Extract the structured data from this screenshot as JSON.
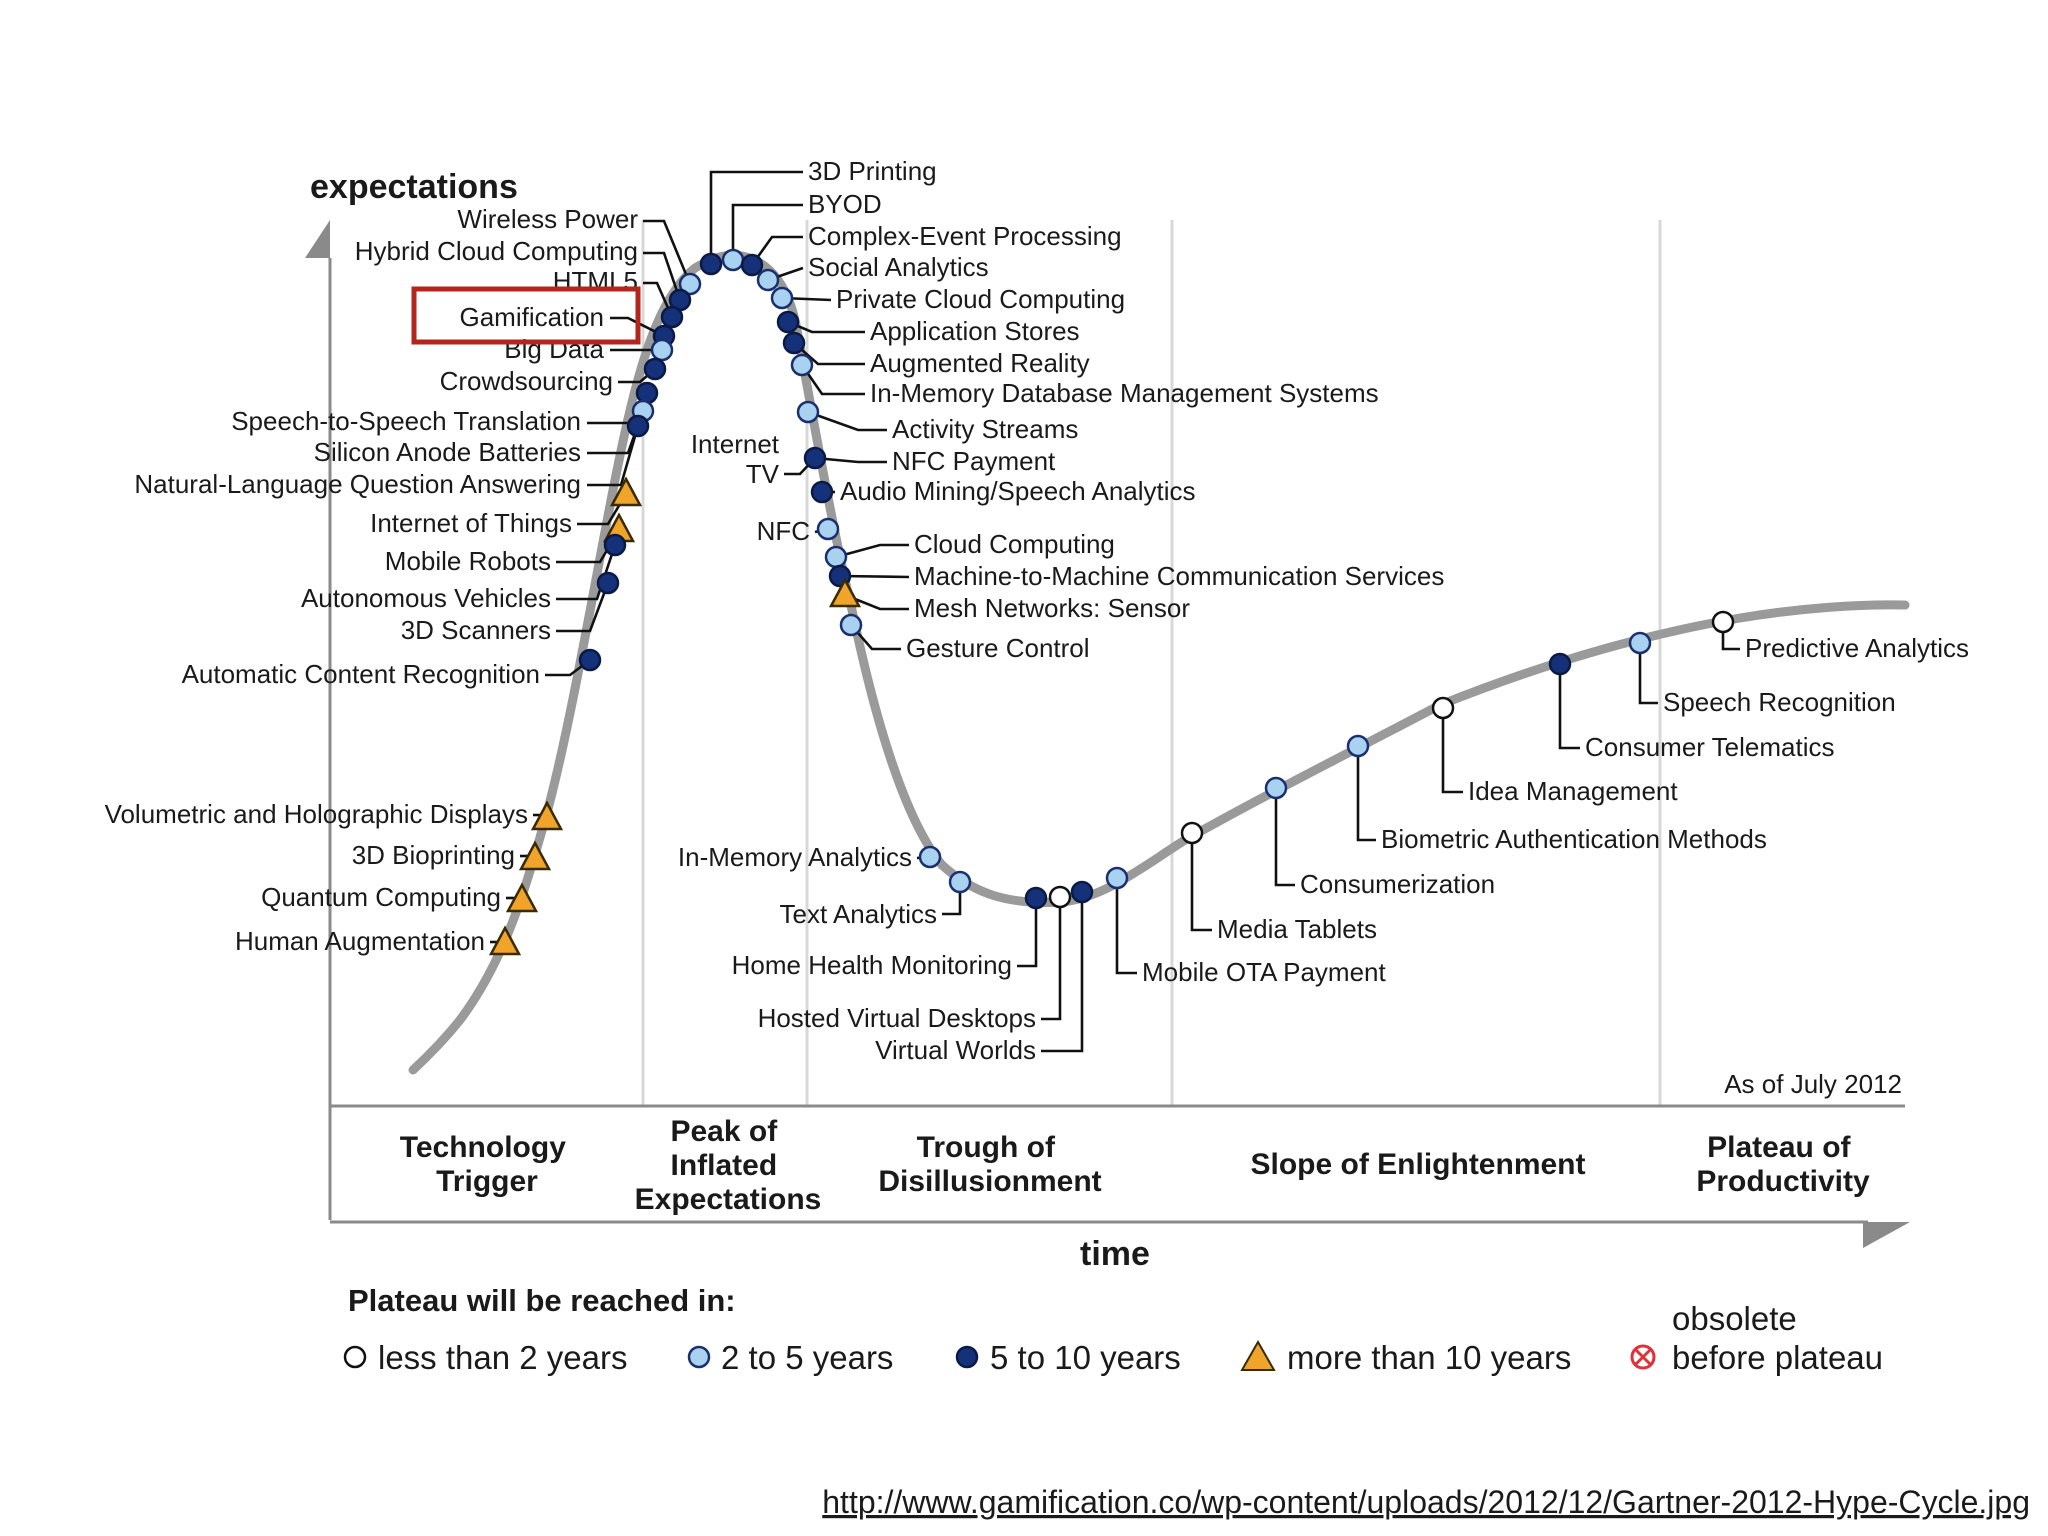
{
  "diagram": {
    "y_axis_label": "expectations",
    "x_axis_label": "time",
    "as_of": "As of July 2012",
    "phases": [
      {
        "id": "trigger",
        "lines": [
          "Technology",
          "Trigger"
        ]
      },
      {
        "id": "peak",
        "lines": [
          "Peak of",
          "Inflated",
          "Expectations"
        ]
      },
      {
        "id": "trough",
        "lines": [
          "Trough of",
          "Disillusionment"
        ]
      },
      {
        "id": "slope",
        "lines": [
          "Slope of Enlightenment"
        ]
      },
      {
        "id": "plateau",
        "lines": [
          "Plateau of",
          "Productivity"
        ]
      }
    ],
    "highlighted": "Gamification",
    "highlight_color": "#b3261e",
    "colors": {
      "curve": "#9a9a9a",
      "less_than_2": "#ffffff",
      "two_to_five": "#a8d2f0",
      "five_to_ten": "#14317a",
      "more_than_10": "#f0a52a",
      "obsolete": "#e0303a"
    },
    "technologies": [
      {
        "name": "Wireless Power",
        "category": "2to5"
      },
      {
        "name": "Hybrid Cloud Computing",
        "category": "5to10"
      },
      {
        "name": "HTML5",
        "category": "5to10"
      },
      {
        "name": "Gamification",
        "category": "5to10"
      },
      {
        "name": "Big Data",
        "category": "2to5"
      },
      {
        "name": "Crowdsourcing",
        "category": "5to10"
      },
      {
        "name": "Speech-to-Speech Translation",
        "category": "5to10"
      },
      {
        "name": "Silicon Anode Batteries",
        "category": "2to5"
      },
      {
        "name": "Natural-Language Question Answering",
        "category": "5to10"
      },
      {
        "name": "Internet of Things",
        "category": "gt10"
      },
      {
        "name": "Mobile Robots",
        "category": "gt10"
      },
      {
        "name": "Autonomous Vehicles",
        "category": "5to10"
      },
      {
        "name": "3D Scanners",
        "category": "5to10"
      },
      {
        "name": "Automatic Content Recognition",
        "category": "5to10"
      },
      {
        "name": "Volumetric and Holographic Displays",
        "category": "gt10"
      },
      {
        "name": "3D Bioprinting",
        "category": "gt10"
      },
      {
        "name": "Quantum Computing",
        "category": "gt10"
      },
      {
        "name": "Human Augmentation",
        "category": "gt10"
      },
      {
        "name": "3D Printing",
        "category": "5to10"
      },
      {
        "name": "BYOD",
        "category": "2to5"
      },
      {
        "name": "Complex-Event Processing",
        "category": "5to10"
      },
      {
        "name": "Social Analytics",
        "category": "2to5"
      },
      {
        "name": "Private Cloud Computing",
        "category": "2to5"
      },
      {
        "name": "Application Stores",
        "category": "5to10"
      },
      {
        "name": "Augmented Reality",
        "category": "5to10"
      },
      {
        "name": "In-Memory Database Management Systems",
        "category": "2to5"
      },
      {
        "name": "Activity Streams",
        "category": "2to5"
      },
      {
        "name": "NFC Payment",
        "category": "5to10"
      },
      {
        "name": "Internet TV",
        "category": "5to10"
      },
      {
        "name": "Audio Mining/Speech Analytics",
        "category": "5to10"
      },
      {
        "name": "NFC",
        "category": "2to5"
      },
      {
        "name": "Cloud Computing",
        "category": "2to5"
      },
      {
        "name": "Machine-to-Machine Communication Services",
        "category": "5to10"
      },
      {
        "name": "Mesh Networks: Sensor",
        "category": "gt10"
      },
      {
        "name": "Gesture Control",
        "category": "2to5"
      },
      {
        "name": "In-Memory Analytics",
        "category": "2to5"
      },
      {
        "name": "Text Analytics",
        "category": "2to5"
      },
      {
        "name": "Home Health Monitoring",
        "category": "5to10"
      },
      {
        "name": "Hosted Virtual Desktops",
        "category": "lt2"
      },
      {
        "name": "Virtual Worlds",
        "category": "5to10"
      },
      {
        "name": "Mobile OTA Payment",
        "category": "2to5"
      },
      {
        "name": "Media Tablets",
        "category": "lt2"
      },
      {
        "name": "Consumerization",
        "category": "2to5"
      },
      {
        "name": "Biometric Authentication Methods",
        "category": "2to5"
      },
      {
        "name": "Idea Management",
        "category": "lt2"
      },
      {
        "name": "Consumer Telematics",
        "category": "5to10"
      },
      {
        "name": "Speech Recognition",
        "category": "2to5"
      },
      {
        "name": "Predictive Analytics",
        "category": "lt2"
      }
    ]
  },
  "legend": {
    "title": "Plateau will be reached in:",
    "items": [
      {
        "id": "lt2",
        "label": "less than 2 years"
      },
      {
        "id": "2to5",
        "label": "2 to 5 years"
      },
      {
        "id": "5to10",
        "label": "5 to 10 years"
      },
      {
        "id": "gt10",
        "label": "more than 10 years"
      },
      {
        "id": "obsolete",
        "label_lines": [
          "obsolete",
          "before plateau"
        ]
      }
    ]
  },
  "source_url": "http://www.gamification.co/wp-content/uploads/2012/12/Gartner-2012-Hype-Cycle.jpg"
}
